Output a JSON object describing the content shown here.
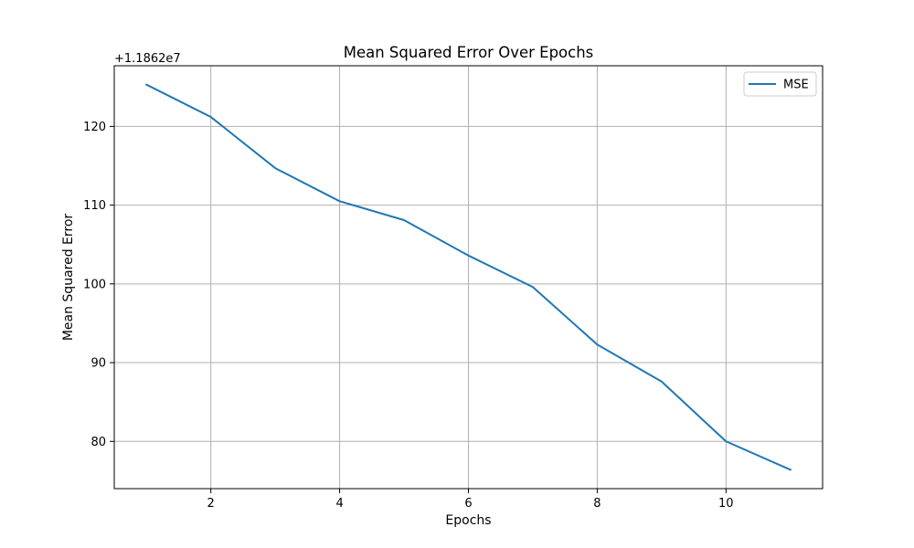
{
  "chart_data": {
    "type": "line",
    "title": "Mean Squared Error Over Epochs",
    "xlabel": "Epochs",
    "ylabel": "Mean Squared Error",
    "y_offset_label": "+1.1862e7",
    "x": [
      1,
      2,
      3,
      4,
      5,
      6,
      7,
      8,
      9,
      10,
      11
    ],
    "series": [
      {
        "name": "MSE",
        "color": "#1f77b4",
        "values": [
          125.3,
          121.2,
          114.7,
          110.5,
          108.1,
          103.6,
          99.6,
          92.3,
          87.6,
          80.0,
          76.4
        ]
      }
    ],
    "xlim": [
      0.5,
      11.5
    ],
    "ylim": [
      74.0,
      127.7
    ],
    "xticks": [
      2,
      4,
      6,
      8,
      10
    ],
    "xtick_labels": [
      "2",
      "4",
      "6",
      "8",
      "10"
    ],
    "yticks": [
      80,
      90,
      100,
      110,
      120
    ],
    "ytick_labels": [
      "80",
      "90",
      "100",
      "110",
      "120"
    ],
    "grid": true,
    "legend": "upper right"
  }
}
